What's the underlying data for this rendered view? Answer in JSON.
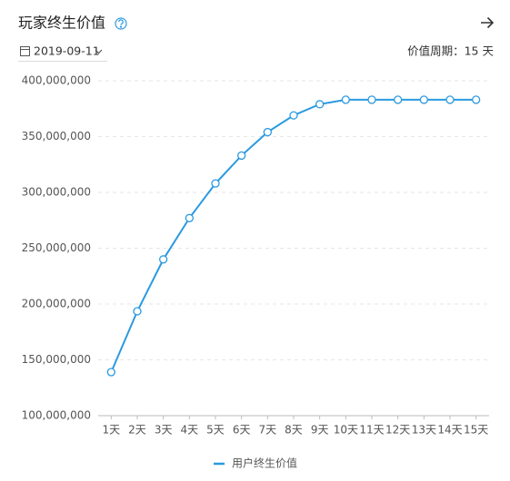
{
  "header": {
    "date": "2019-09-11",
    "period": "价值周期：15 天"
  },
  "chart_data": {
    "type": "line",
    "title": "玩家终生价值",
    "categories": [
      "1天",
      "2天",
      "3天",
      "4天",
      "5天",
      "6天",
      "7天",
      "8天",
      "9天",
      "10天",
      "11天",
      "12天",
      "13天",
      "14天",
      "15天"
    ],
    "series": [
      {
        "name": "用户终生价值",
        "color": "#2b9ae0",
        "values": [
          139000000,
          193500000,
          240000000,
          277000000,
          308000000,
          333000000,
          354000000,
          369000000,
          379000000,
          383000000,
          383000000,
          383000000,
          383000000,
          383000000,
          383000000
        ]
      }
    ],
    "ylim": [
      100000000,
      400000000
    ],
    "yticks": [
      {
        "value": 100000000,
        "label": "100,000,000"
      },
      {
        "value": 150000000,
        "label": "150,000,000"
      },
      {
        "value": 200000000,
        "label": "200,000,000"
      },
      {
        "value": 250000000,
        "label": "250,000,000"
      },
      {
        "value": 300000000,
        "label": "300,000,000"
      },
      {
        "value": 350000000,
        "label": "350,000,000"
      },
      {
        "value": 400000000,
        "label": "400,000,000"
      }
    ],
    "grid": true,
    "legend": "bottom"
  }
}
